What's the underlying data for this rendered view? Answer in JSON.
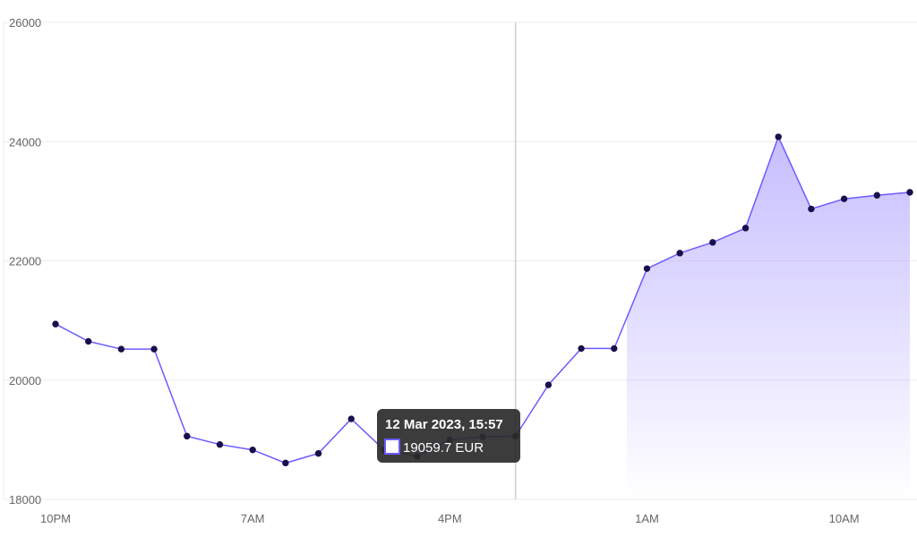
{
  "chart_data": {
    "type": "area",
    "title": "",
    "xlabel": "",
    "ylabel": "",
    "ylim": [
      18000,
      26000
    ],
    "y_ticks": [
      "26000",
      "24000",
      "22000",
      "20000",
      "18000"
    ],
    "x_ticks": [
      "10PM",
      "7AM",
      "4PM",
      "1AM",
      "10AM"
    ],
    "grid": true,
    "colors": {
      "line": "#6a5cff",
      "point": "#1a0f4d",
      "fill_top": "#b3a8ff",
      "grid": "#ececec",
      "crosshair": "#cfcfcf",
      "tooltip_bg": "#2b2b2b"
    },
    "series": [
      {
        "values": [
          20940,
          20650,
          20520,
          20520,
          19060,
          18920,
          18830,
          18610,
          18770,
          19350,
          18830,
          18720,
          19000,
          19050,
          19059.7,
          19920,
          20530,
          20530,
          21870,
          22130,
          22310,
          22550,
          24080,
          22870,
          23040,
          23100,
          23150
        ]
      }
    ],
    "tooltip": {
      "title": "12 Mar 2023, 15:57",
      "value": "19059.7 EUR",
      "index": 14
    }
  }
}
